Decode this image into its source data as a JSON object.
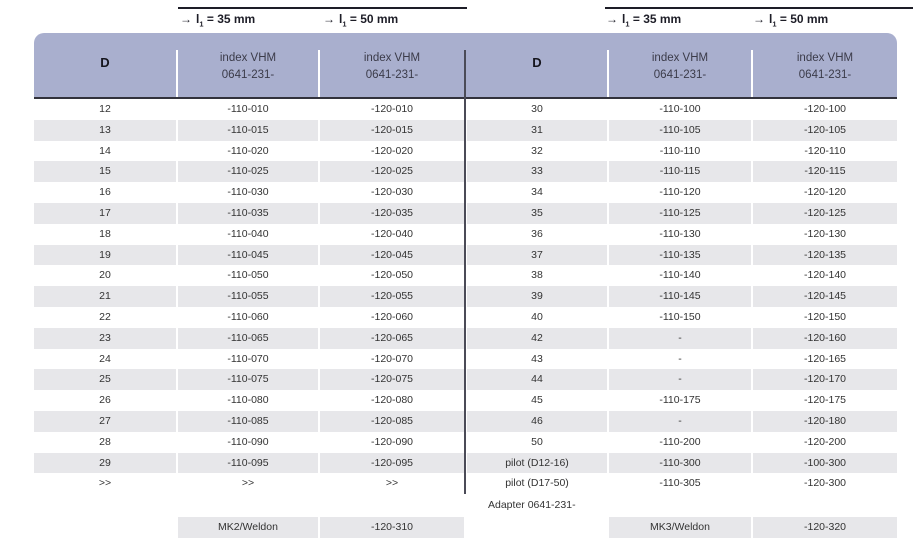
{
  "page": {
    "length_labels": [
      {
        "arrow": "→",
        "base": "l",
        "sub": "1",
        "rest": " = 35 mm"
      },
      {
        "arrow": "→",
        "base": "l",
        "sub": "1",
        "rest": " = 50 mm"
      }
    ],
    "col_header": {
      "d": "D",
      "line1": "index VHM",
      "line2": "0641-231-"
    }
  },
  "left_table": {
    "rows": [
      [
        "12",
        "-110-010",
        "-120-010"
      ],
      [
        "13",
        "-110-015",
        "-120-015"
      ],
      [
        "14",
        "-110-020",
        "-120-020"
      ],
      [
        "15",
        "-110-025",
        "-120-025"
      ],
      [
        "16",
        "-110-030",
        "-120-030"
      ],
      [
        "17",
        "-110-035",
        "-120-035"
      ],
      [
        "18",
        "-110-040",
        "-120-040"
      ],
      [
        "19",
        "-110-045",
        "-120-045"
      ],
      [
        "20",
        "-110-050",
        "-120-050"
      ],
      [
        "21",
        "-110-055",
        "-120-055"
      ],
      [
        "22",
        "-110-060",
        "-120-060"
      ],
      [
        "23",
        "-110-065",
        "-120-065"
      ],
      [
        "24",
        "-110-070",
        "-120-070"
      ],
      [
        "25",
        "-110-075",
        "-120-075"
      ],
      [
        "26",
        "-110-080",
        "-120-080"
      ],
      [
        "27",
        "-110-085",
        "-120-085"
      ],
      [
        "28",
        "-110-090",
        "-120-090"
      ],
      [
        "29",
        "-110-095",
        "-120-095"
      ],
      [
        ">>",
        ">>",
        ">>"
      ]
    ],
    "footer_label": "MK2/Weldon",
    "footer_value": "-120-310"
  },
  "right_table": {
    "rows": [
      [
        "30",
        "-110-100",
        "-120-100"
      ],
      [
        "31",
        "-110-105",
        "-120-105"
      ],
      [
        "32",
        "-110-110",
        "-120-110"
      ],
      [
        "33",
        "-110-115",
        "-120-115"
      ],
      [
        "34",
        "-110-120",
        "-120-120"
      ],
      [
        "35",
        "-110-125",
        "-120-125"
      ],
      [
        "36",
        "-110-130",
        "-120-130"
      ],
      [
        "37",
        "-110-135",
        "-120-135"
      ],
      [
        "38",
        "-110-140",
        "-120-140"
      ],
      [
        "39",
        "-110-145",
        "-120-145"
      ],
      [
        "40",
        "-110-150",
        "-120-150"
      ],
      [
        "42",
        "-",
        "-120-160"
      ],
      [
        "43",
        "-",
        "-120-165"
      ],
      [
        "44",
        "-",
        "-120-170"
      ],
      [
        "45",
        "-110-175",
        "-120-175"
      ],
      [
        "46",
        "-",
        "-120-180"
      ],
      [
        "50",
        "-110-200",
        "-120-200"
      ],
      [
        "pilot (D12-16)",
        "-110-300",
        "-100-300"
      ],
      [
        "pilot (D17-50)",
        "-110-305",
        "-120-300"
      ]
    ],
    "adapter_label": "Adapter 0641-231-",
    "footer_label": "MK3/Weldon",
    "footer_value": "-120-320"
  },
  "colors": {
    "band": "#a9afce",
    "row_alt": "#e7e7ea",
    "rule": "#32323c",
    "divider": "#4b4b57",
    "text": "#333333",
    "header_text": "#3b3b49",
    "label": "#1d1d27"
  }
}
